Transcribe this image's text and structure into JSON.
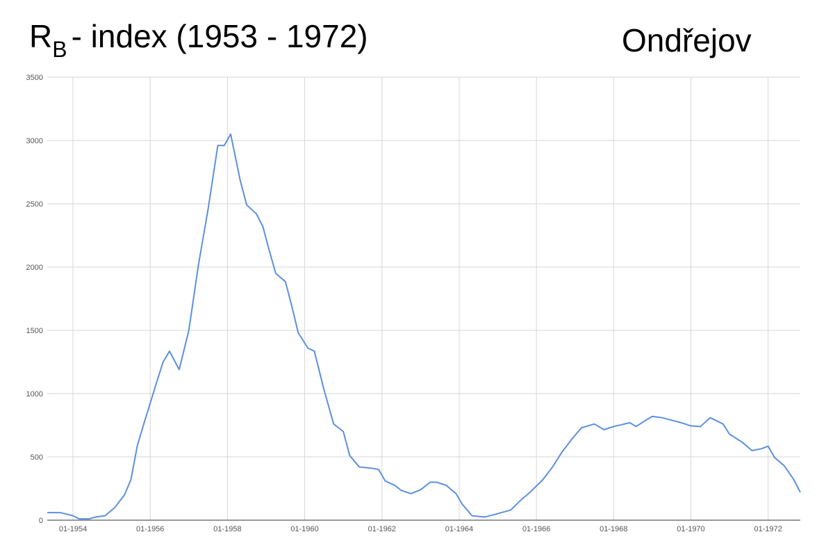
{
  "chart_data": {
    "type": "line",
    "title_parts": [
      "R",
      "B",
      "- index (1953 - 1972)"
    ],
    "station": "Ondřejov",
    "x": [
      "05-1953",
      "09-1953",
      "01-1954",
      "03-1954",
      "06-1954",
      "08-1954",
      "11-1954",
      "02-1955",
      "05-1955",
      "07-1955",
      "09-1955",
      "11-1955",
      "03-1956",
      "05-1956",
      "07-1956",
      "10-1956",
      "01-1957",
      "04-1957",
      "07-1957",
      "10-1957",
      "12-1957",
      "02-1958",
      "05-1958",
      "07-1958",
      "10-1958",
      "12-1958",
      "02-1959",
      "04-1959",
      "07-1959",
      "09-1959",
      "11-1959",
      "02-1960",
      "04-1960",
      "07-1960",
      "10-1960",
      "01-1961",
      "03-1961",
      "06-1961",
      "10-1961",
      "12-1961",
      "02-1962",
      "05-1962",
      "07-1962",
      "10-1962",
      "01-1963",
      "04-1963",
      "06-1963",
      "09-1963",
      "12-1963",
      "02-1964",
      "05-1964",
      "09-1964",
      "12-1964",
      "05-1965",
      "08-1965",
      "11-1965",
      "03-1966",
      "06-1966",
      "09-1966",
      "12-1966",
      "03-1967",
      "07-1967",
      "10-1967",
      "01-1968",
      "06-1968",
      "08-1968",
      "11-1968",
      "01-1969",
      "04-1969",
      "07-1969",
      "10-1969",
      "01-1970",
      "04-1970",
      "07-1970",
      "11-1970",
      "01-1971",
      "05-1971",
      "08-1971",
      "11-1971",
      "01-1972",
      "03-1972",
      "06-1972",
      "09-1972",
      "11-1972"
    ],
    "series": [
      {
        "color": "#5b8fde",
        "values": [
          60,
          60,
          35,
          10,
          10,
          25,
          35,
          100,
          200,
          320,
          590,
          760,
          1090,
          1250,
          1335,
          1190,
          1500,
          2020,
          2460,
          2960,
          2960,
          3050,
          2680,
          2490,
          2420,
          2320,
          2130,
          1950,
          1885,
          1690,
          1480,
          1360,
          1335,
          1030,
          760,
          700,
          510,
          420,
          410,
          400,
          310,
          275,
          235,
          210,
          240,
          300,
          300,
          275,
          210,
          125,
          35,
          25,
          45,
          80,
          155,
          220,
          320,
          420,
          540,
          640,
          730,
          760,
          715,
          740,
          770,
          740,
          790,
          820,
          810,
          790,
          770,
          745,
          740,
          810,
          760,
          680,
          615,
          550,
          565,
          585,
          495,
          430,
          320,
          220
        ]
      }
    ],
    "xlim": [
      "05-1953",
      "11-1972"
    ],
    "xticks": [
      "01-1954",
      "01-1956",
      "01-1958",
      "01-1960",
      "01-1962",
      "01-1964",
      "01-1966",
      "01-1968",
      "01-1970",
      "01-1972"
    ],
    "ylim": [
      0,
      3500
    ],
    "yticks": [
      0,
      500,
      1000,
      1500,
      2000,
      2500,
      3000,
      3500
    ],
    "grid": true
  }
}
